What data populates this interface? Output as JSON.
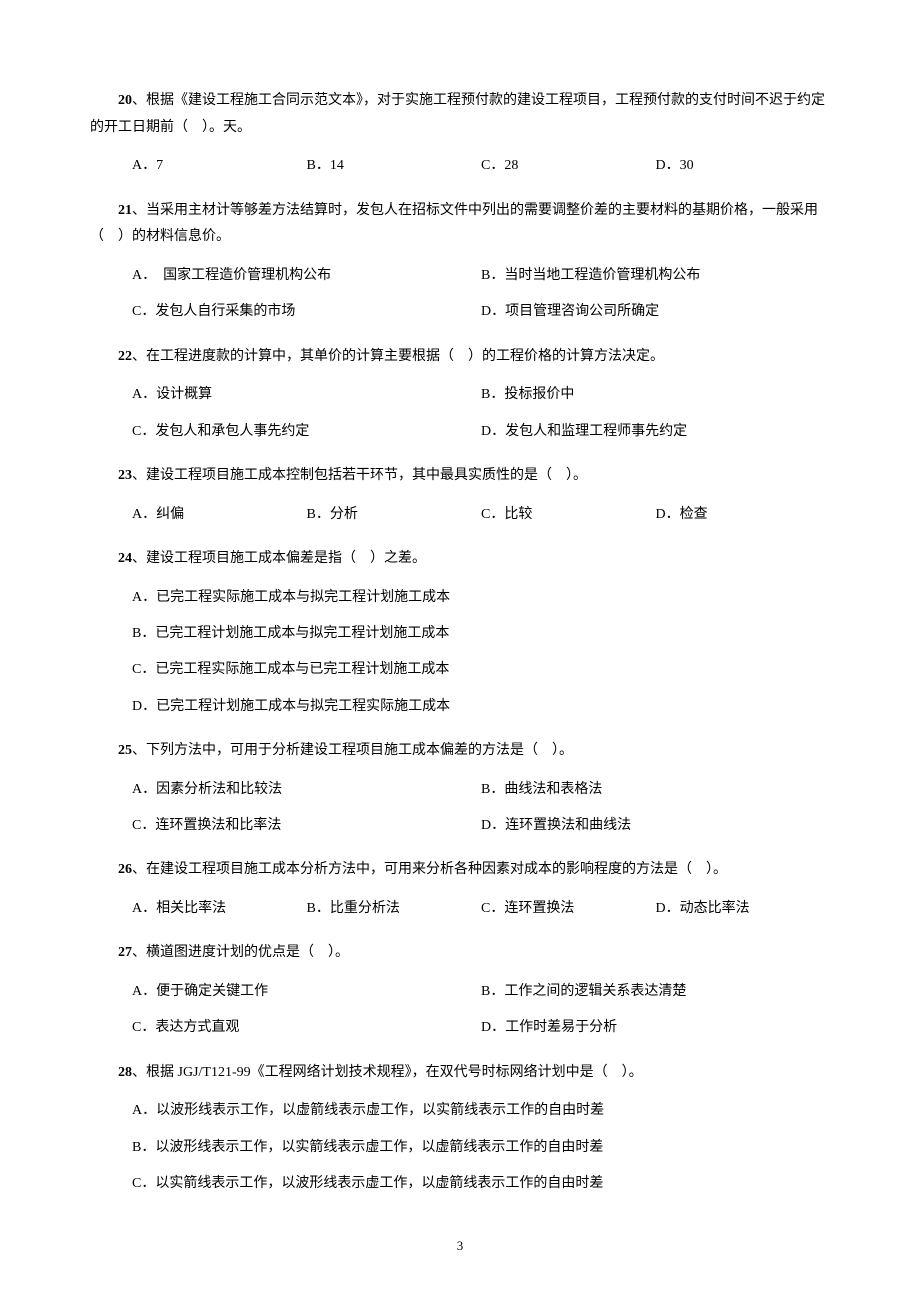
{
  "questions": [
    {
      "num": "20",
      "text": "、根据《建设工程施工合同示范文本》，对于实施工程预付款的建设工程项目，工程预付款的支付时间不迟于约定的开工日期前（　）。天。",
      "layout": "4col",
      "wrap": true,
      "opts": [
        "A．7",
        "B．14",
        "C．28",
        "D．30"
      ]
    },
    {
      "num": "21",
      "text": "、当采用主材计等够差方法结算时，发包人在招标文件中列出的需要调整价差的主要材料的基期价格，一般采用（　）的材料信息价。",
      "layout": "2col-2row",
      "wrap": true,
      "opts": [
        "A．　国家工程造价管理机构公布",
        "B．当时当地工程造价管理机构公布",
        "C．发包人自行采集的市场",
        "D．项目管理咨询公司所确定"
      ]
    },
    {
      "num": "22",
      "text": "、在工程进度款的计算中，其单价的计算主要根据（　）的工程价格的计算方法决定。",
      "layout": "2col-2row",
      "opts": [
        "A．设计概算",
        "B．投标报价中",
        "C．发包人和承包人事先约定",
        "D．发包人和监理工程师事先约定"
      ]
    },
    {
      "num": "23",
      "text": "、建设工程项目施工成本控制包括若干环节，其中最具实质性的是（　）。",
      "layout": "4col",
      "opts": [
        "A．纠偏",
        "B．分析",
        "C．比较",
        "D．检查"
      ]
    },
    {
      "num": "24",
      "text": "、建设工程项目施工成本偏差是指（　）之差。",
      "layout": "1col",
      "opts": [
        "A．已完工程实际施工成本与拟完工程计划施工成本",
        "B．已完工程计划施工成本与拟完工程计划施工成本",
        "C．已完工程实际施工成本与已完工程计划施工成本",
        "D．已完工程计划施工成本与拟完工程实际施工成本"
      ]
    },
    {
      "num": "25",
      "text": "、下列方法中，可用于分析建设工程项目施工成本偏差的方法是（　）。",
      "layout": "2col-2row",
      "opts": [
        "A．因素分析法和比较法",
        "B．曲线法和表格法",
        "C．连环置换法和比率法",
        "D．连环置换法和曲线法"
      ]
    },
    {
      "num": "26",
      "text": "、在建设工程项目施工成本分析方法中，可用来分析各种因素对成本的影响程度的方法是（　）。",
      "layout": "4col",
      "opts": [
        "A．相关比率法",
        "B．比重分析法",
        "C．连环置换法",
        "D．动态比率法"
      ]
    },
    {
      "num": "27",
      "text": "、横道图进度计划的优点是（　）。",
      "layout": "2col-2row",
      "opts": [
        "A．便于确定关键工作",
        "B．工作之间的逻辑关系表达清楚",
        "C．表达方式直观",
        "D．工作时差易于分析"
      ]
    },
    {
      "num": "28",
      "text": "、根据 JGJ/T121-99《工程网络计划技术规程》，在双代号时标网络计划中是（　）。",
      "layout": "1col",
      "opts": [
        "A．以波形线表示工作，以虚箭线表示虚工作，以实箭线表示工作的自由时差",
        "B．以波形线表示工作，以实箭线表示虚工作，以虚箭线表示工作的自由时差",
        "C．以实箭线表示工作，以波形线表示虚工作，以虚箭线表示工作的自由时差"
      ]
    }
  ],
  "page_number": "3"
}
